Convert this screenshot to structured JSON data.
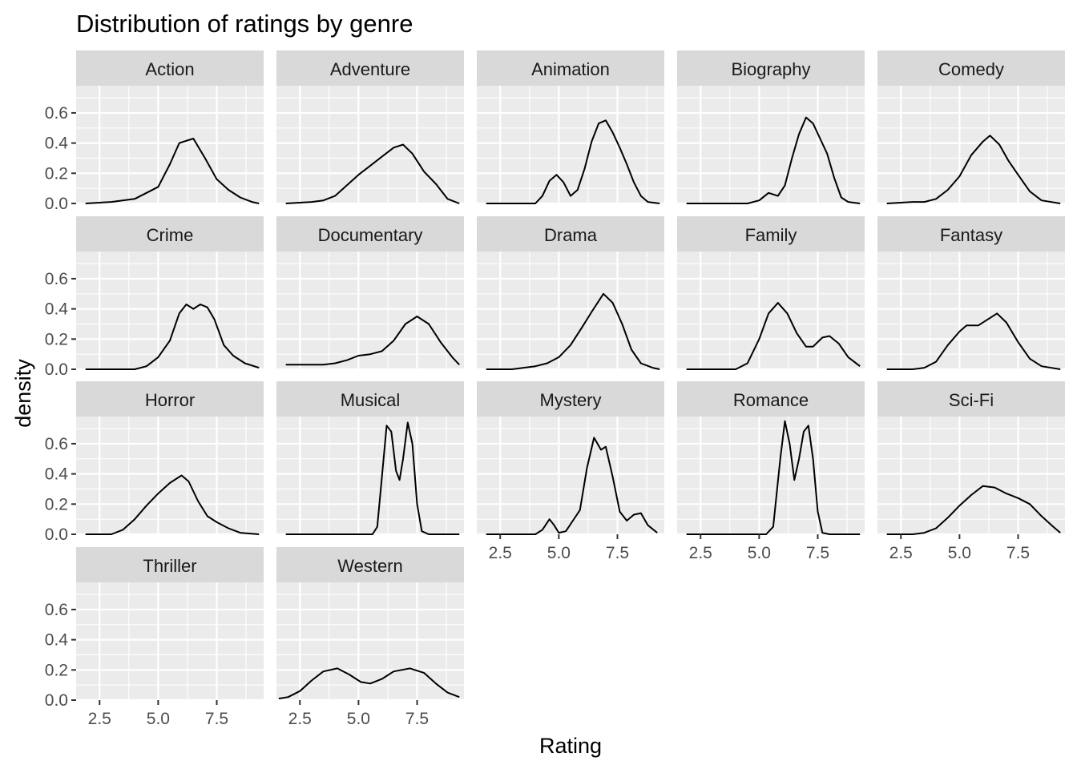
{
  "chart_data": {
    "type": "line",
    "title": "Distribution of ratings by genre",
    "xlabel": "Rating",
    "ylabel": "density",
    "xlim": [
      1.5,
      9.5
    ],
    "ylim": [
      0,
      0.78
    ],
    "x_ticks": [
      2.5,
      5.0,
      7.5
    ],
    "x_tick_labels": [
      "2.5",
      "5.0",
      "7.5"
    ],
    "y_ticks": [
      0.0,
      0.2,
      0.4,
      0.6
    ],
    "y_tick_labels": [
      "0.0",
      "0.2",
      "0.4",
      "0.6"
    ],
    "grid": true,
    "facets": [
      {
        "name": "Action",
        "points": [
          [
            1.9,
            0.0
          ],
          [
            3,
            0.01
          ],
          [
            4,
            0.03
          ],
          [
            4.5,
            0.07
          ],
          [
            5,
            0.11
          ],
          [
            5.5,
            0.26
          ],
          [
            5.9,
            0.4
          ],
          [
            6.5,
            0.43
          ],
          [
            7,
            0.3
          ],
          [
            7.5,
            0.16
          ],
          [
            8,
            0.09
          ],
          [
            8.5,
            0.04
          ],
          [
            9,
            0.01
          ],
          [
            9.3,
            0.0
          ]
        ]
      },
      {
        "name": "Adventure",
        "points": [
          [
            1.9,
            0.0
          ],
          [
            3,
            0.01
          ],
          [
            3.5,
            0.02
          ],
          [
            4,
            0.05
          ],
          [
            4.5,
            0.12
          ],
          [
            5,
            0.19
          ],
          [
            5.5,
            0.25
          ],
          [
            6,
            0.31
          ],
          [
            6.5,
            0.37
          ],
          [
            6.9,
            0.39
          ],
          [
            7.3,
            0.33
          ],
          [
            7.8,
            0.21
          ],
          [
            8.3,
            0.13
          ],
          [
            8.8,
            0.03
          ],
          [
            9.3,
            0.0
          ]
        ]
      },
      {
        "name": "Animation",
        "points": [
          [
            1.9,
            0.0
          ],
          [
            4,
            0.0
          ],
          [
            4.3,
            0.05
          ],
          [
            4.6,
            0.15
          ],
          [
            4.9,
            0.19
          ],
          [
            5.2,
            0.14
          ],
          [
            5.5,
            0.05
          ],
          [
            5.8,
            0.09
          ],
          [
            6.1,
            0.23
          ],
          [
            6.4,
            0.41
          ],
          [
            6.7,
            0.53
          ],
          [
            7,
            0.55
          ],
          [
            7.3,
            0.47
          ],
          [
            7.6,
            0.37
          ],
          [
            7.9,
            0.26
          ],
          [
            8.2,
            0.14
          ],
          [
            8.5,
            0.05
          ],
          [
            8.8,
            0.01
          ],
          [
            9.3,
            0.0
          ]
        ]
      },
      {
        "name": "Biography",
        "points": [
          [
            1.9,
            0.0
          ],
          [
            4.5,
            0.0
          ],
          [
            5,
            0.02
          ],
          [
            5.4,
            0.07
          ],
          [
            5.8,
            0.05
          ],
          [
            6.1,
            0.12
          ],
          [
            6.4,
            0.3
          ],
          [
            6.7,
            0.46
          ],
          [
            7,
            0.57
          ],
          [
            7.3,
            0.53
          ],
          [
            7.6,
            0.43
          ],
          [
            7.9,
            0.33
          ],
          [
            8.2,
            0.17
          ],
          [
            8.5,
            0.04
          ],
          [
            8.8,
            0.01
          ],
          [
            9.3,
            0.0
          ]
        ]
      },
      {
        "name": "Comedy",
        "points": [
          [
            1.9,
            0.0
          ],
          [
            3,
            0.01
          ],
          [
            3.5,
            0.01
          ],
          [
            4,
            0.03
          ],
          [
            4.5,
            0.09
          ],
          [
            5,
            0.18
          ],
          [
            5.5,
            0.32
          ],
          [
            6,
            0.41
          ],
          [
            6.3,
            0.45
          ],
          [
            6.7,
            0.39
          ],
          [
            7.1,
            0.28
          ],
          [
            7.5,
            0.19
          ],
          [
            8,
            0.08
          ],
          [
            8.5,
            0.02
          ],
          [
            9.3,
            0.0
          ]
        ]
      },
      {
        "name": "Crime",
        "points": [
          [
            1.9,
            0.0
          ],
          [
            4,
            0.0
          ],
          [
            4.5,
            0.02
          ],
          [
            5,
            0.08
          ],
          [
            5.5,
            0.19
          ],
          [
            5.9,
            0.37
          ],
          [
            6.2,
            0.43
          ],
          [
            6.5,
            0.4
          ],
          [
            6.8,
            0.43
          ],
          [
            7.1,
            0.41
          ],
          [
            7.4,
            0.33
          ],
          [
            7.8,
            0.16
          ],
          [
            8.2,
            0.09
          ],
          [
            8.7,
            0.04
          ],
          [
            9.3,
            0.01
          ]
        ]
      },
      {
        "name": "Documentary",
        "points": [
          [
            1.9,
            0.03
          ],
          [
            3,
            0.03
          ],
          [
            3.5,
            0.03
          ],
          [
            4,
            0.04
          ],
          [
            4.5,
            0.06
          ],
          [
            5,
            0.09
          ],
          [
            5.5,
            0.1
          ],
          [
            6,
            0.12
          ],
          [
            6.5,
            0.19
          ],
          [
            7,
            0.3
          ],
          [
            7.5,
            0.35
          ],
          [
            8,
            0.3
          ],
          [
            8.5,
            0.18
          ],
          [
            9,
            0.08
          ],
          [
            9.3,
            0.03
          ]
        ]
      },
      {
        "name": "Drama",
        "points": [
          [
            1.9,
            0.0
          ],
          [
            3,
            0.0
          ],
          [
            4,
            0.02
          ],
          [
            4.5,
            0.04
          ],
          [
            5,
            0.08
          ],
          [
            5.5,
            0.16
          ],
          [
            6,
            0.28
          ],
          [
            6.4,
            0.38
          ],
          [
            6.9,
            0.5
          ],
          [
            7.3,
            0.44
          ],
          [
            7.7,
            0.3
          ],
          [
            8.1,
            0.13
          ],
          [
            8.5,
            0.04
          ],
          [
            9,
            0.01
          ],
          [
            9.3,
            0.0
          ]
        ]
      },
      {
        "name": "Family",
        "points": [
          [
            1.9,
            0.0
          ],
          [
            4,
            0.0
          ],
          [
            4.5,
            0.04
          ],
          [
            5,
            0.2
          ],
          [
            5.4,
            0.37
          ],
          [
            5.8,
            0.44
          ],
          [
            6.2,
            0.37
          ],
          [
            6.6,
            0.24
          ],
          [
            7,
            0.15
          ],
          [
            7.3,
            0.15
          ],
          [
            7.7,
            0.21
          ],
          [
            8,
            0.22
          ],
          [
            8.4,
            0.17
          ],
          [
            8.8,
            0.08
          ],
          [
            9.3,
            0.02
          ]
        ]
      },
      {
        "name": "Fantasy",
        "points": [
          [
            1.9,
            0.0
          ],
          [
            3,
            0.0
          ],
          [
            3.5,
            0.01
          ],
          [
            4,
            0.05
          ],
          [
            4.5,
            0.16
          ],
          [
            5,
            0.25
          ],
          [
            5.3,
            0.29
          ],
          [
            5.8,
            0.29
          ],
          [
            6.2,
            0.33
          ],
          [
            6.6,
            0.37
          ],
          [
            7,
            0.31
          ],
          [
            7.5,
            0.18
          ],
          [
            8,
            0.07
          ],
          [
            8.5,
            0.02
          ],
          [
            9.3,
            0.0
          ]
        ]
      },
      {
        "name": "Horror",
        "points": [
          [
            1.9,
            0.0
          ],
          [
            3,
            0.0
          ],
          [
            3.5,
            0.03
          ],
          [
            4,
            0.1
          ],
          [
            4.5,
            0.19
          ],
          [
            5,
            0.27
          ],
          [
            5.5,
            0.34
          ],
          [
            6,
            0.39
          ],
          [
            6.3,
            0.35
          ],
          [
            6.7,
            0.22
          ],
          [
            7.1,
            0.12
          ],
          [
            7.5,
            0.08
          ],
          [
            8,
            0.04
          ],
          [
            8.5,
            0.01
          ],
          [
            9.3,
            0.0
          ]
        ]
      },
      {
        "name": "Musical",
        "points": [
          [
            1.9,
            0.0
          ],
          [
            5.6,
            0.0
          ],
          [
            5.8,
            0.05
          ],
          [
            6,
            0.38
          ],
          [
            6.2,
            0.72
          ],
          [
            6.4,
            0.68
          ],
          [
            6.6,
            0.42
          ],
          [
            6.75,
            0.36
          ],
          [
            6.9,
            0.5
          ],
          [
            7.1,
            0.74
          ],
          [
            7.3,
            0.6
          ],
          [
            7.5,
            0.2
          ],
          [
            7.7,
            0.02
          ],
          [
            8,
            0.0
          ],
          [
            9.3,
            0.0
          ]
        ]
      },
      {
        "name": "Mystery",
        "points": [
          [
            1.9,
            0.0
          ],
          [
            4,
            0.0
          ],
          [
            4.3,
            0.03
          ],
          [
            4.6,
            0.1
          ],
          [
            4.8,
            0.06
          ],
          [
            5,
            0.01
          ],
          [
            5.3,
            0.02
          ],
          [
            5.6,
            0.09
          ],
          [
            5.9,
            0.16
          ],
          [
            6.2,
            0.44
          ],
          [
            6.5,
            0.64
          ],
          [
            6.8,
            0.56
          ],
          [
            7,
            0.58
          ],
          [
            7.3,
            0.38
          ],
          [
            7.6,
            0.15
          ],
          [
            7.9,
            0.09
          ],
          [
            8.2,
            0.13
          ],
          [
            8.5,
            0.14
          ],
          [
            8.8,
            0.06
          ],
          [
            9.2,
            0.01
          ]
        ]
      },
      {
        "name": "Romance",
        "points": [
          [
            1.9,
            0.0
          ],
          [
            5.3,
            0.0
          ],
          [
            5.6,
            0.05
          ],
          [
            5.9,
            0.5
          ],
          [
            6.1,
            0.75
          ],
          [
            6.3,
            0.6
          ],
          [
            6.5,
            0.36
          ],
          [
            6.7,
            0.5
          ],
          [
            6.9,
            0.68
          ],
          [
            7.1,
            0.72
          ],
          [
            7.3,
            0.5
          ],
          [
            7.5,
            0.15
          ],
          [
            7.7,
            0.01
          ],
          [
            8,
            0.0
          ],
          [
            9.3,
            0.0
          ]
        ]
      },
      {
        "name": "Sci-Fi",
        "points": [
          [
            1.9,
            0.0
          ],
          [
            3,
            0.0
          ],
          [
            3.5,
            0.01
          ],
          [
            4,
            0.04
          ],
          [
            4.5,
            0.11
          ],
          [
            5,
            0.19
          ],
          [
            5.5,
            0.26
          ],
          [
            6,
            0.32
          ],
          [
            6.5,
            0.31
          ],
          [
            7,
            0.27
          ],
          [
            7.5,
            0.24
          ],
          [
            8,
            0.2
          ],
          [
            8.5,
            0.12
          ],
          [
            9,
            0.05
          ],
          [
            9.3,
            0.01
          ]
        ]
      },
      {
        "name": "Thriller",
        "points": []
      },
      {
        "name": "Western",
        "points": [
          [
            1.6,
            0.01
          ],
          [
            2,
            0.02
          ],
          [
            2.5,
            0.06
          ],
          [
            3,
            0.13
          ],
          [
            3.5,
            0.19
          ],
          [
            4.1,
            0.21
          ],
          [
            4.6,
            0.17
          ],
          [
            5.1,
            0.12
          ],
          [
            5.5,
            0.11
          ],
          [
            6,
            0.14
          ],
          [
            6.5,
            0.19
          ],
          [
            7.2,
            0.21
          ],
          [
            7.8,
            0.18
          ],
          [
            8.3,
            0.11
          ],
          [
            8.8,
            0.05
          ],
          [
            9.3,
            0.02
          ]
        ]
      }
    ]
  }
}
